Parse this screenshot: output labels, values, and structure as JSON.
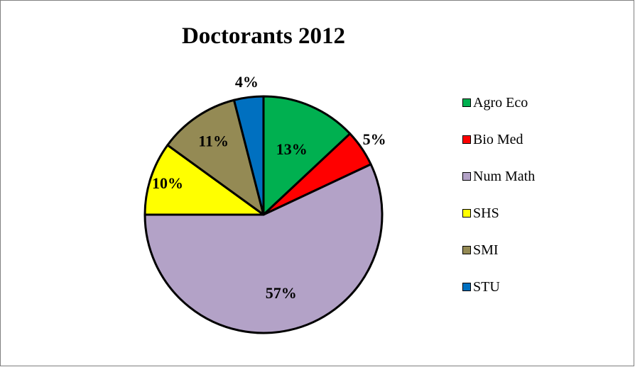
{
  "chart_data": {
    "type": "pie",
    "title": "Doctorants 2012",
    "categories": [
      "Agro Eco",
      "Bio Med",
      "Num Math",
      "SHS",
      "SMI",
      "STU"
    ],
    "values": [
      13,
      5,
      57,
      10,
      11,
      4
    ],
    "labels": [
      "13%",
      "5%",
      "57%",
      "10%",
      "11%",
      "4%"
    ],
    "colors": [
      "#00B050",
      "#FF0000",
      "#B3A2C7",
      "#FFFF00",
      "#948A54",
      "#0070C0"
    ],
    "legend_position": "right",
    "start_angle": "12 o'clock",
    "direction": "clockwise"
  }
}
